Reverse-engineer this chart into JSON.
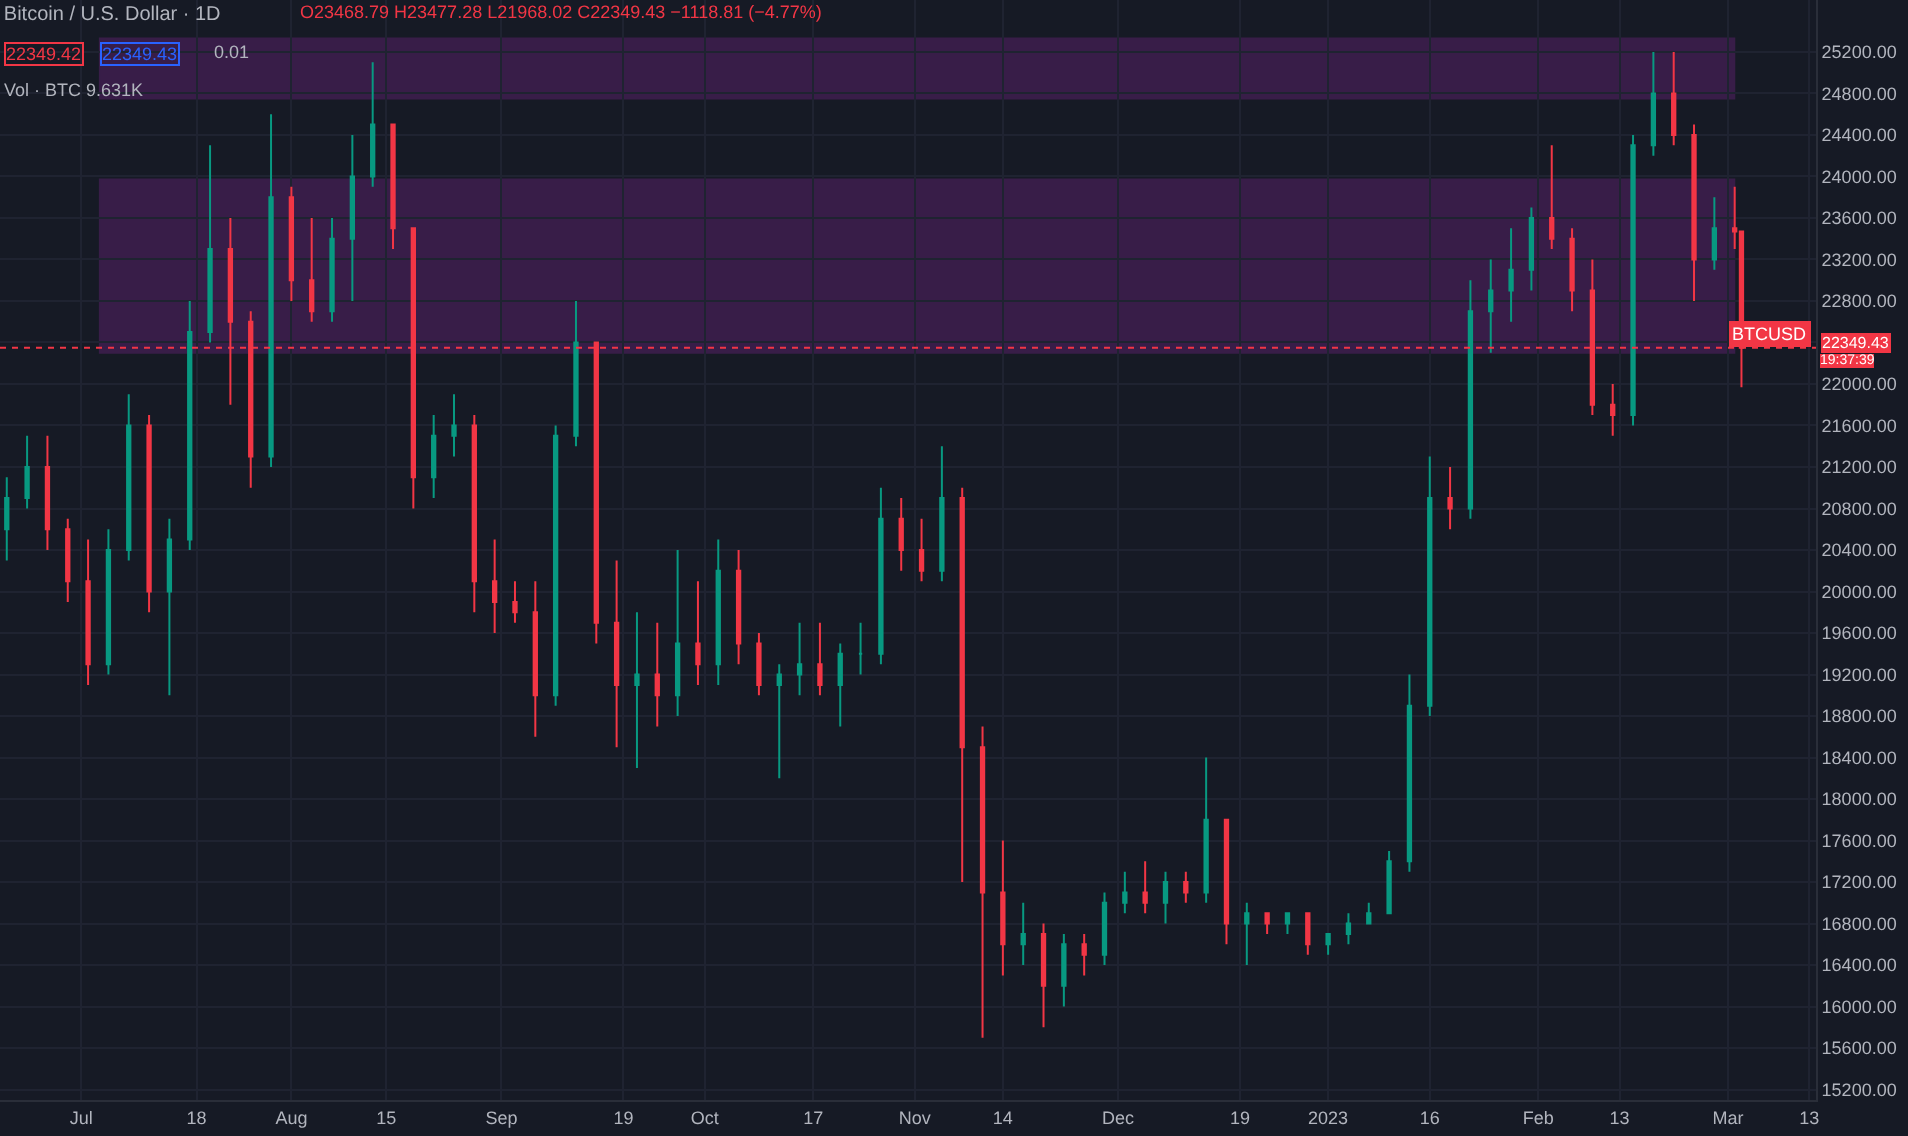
{
  "chart_data": {
    "type": "candlestick",
    "title": "Bitcoin / U.S. Dollar · 1D",
    "annotations": [
      "O23468.79 H23477.28 L21968.02 C22349.43 −1118.81 (−4.77%)",
      "22349.42",
      "0.01",
      "22349.43",
      "Vol · BTC 9.631K",
      "19:37:39"
    ],
    "x": [
      "2022-06-20",
      "2022-06-23",
      "2022-06-26",
      "2022-06-29",
      "2022-07-02",
      "2022-07-05",
      "2022-07-08",
      "2022-07-11",
      "2022-07-14",
      "2022-07-17",
      "2022-07-20",
      "2022-07-23",
      "2022-07-26",
      "2022-07-29",
      "2022-08-01",
      "2022-08-04",
      "2022-08-07",
      "2022-08-10",
      "2022-08-13",
      "2022-08-16",
      "2022-08-19",
      "2022-08-22",
      "2022-08-25",
      "2022-08-28",
      "2022-08-31",
      "2022-09-03",
      "2022-09-06",
      "2022-09-09",
      "2022-09-12",
      "2022-09-15",
      "2022-09-18",
      "2022-09-21",
      "2022-09-24",
      "2022-09-27",
      "2022-09-30",
      "2022-10-03",
      "2022-10-06",
      "2022-10-09",
      "2022-10-12",
      "2022-10-15",
      "2022-10-18",
      "2022-10-21",
      "2022-10-24",
      "2022-10-27",
      "2022-10-30",
      "2022-11-02",
      "2022-11-05",
      "2022-11-08",
      "2022-11-11",
      "2022-11-14",
      "2022-11-17",
      "2022-11-20",
      "2022-11-23",
      "2022-11-26",
      "2022-11-29",
      "2022-12-02",
      "2022-12-05",
      "2022-12-08",
      "2022-12-11",
      "2022-12-14",
      "2022-12-17",
      "2022-12-20",
      "2022-12-23",
      "2022-12-26",
      "2022-12-29",
      "2023-01-01",
      "2023-01-04",
      "2023-01-07",
      "2023-01-10",
      "2023-01-13",
      "2023-01-16",
      "2023-01-19",
      "2023-01-22",
      "2023-01-25",
      "2023-01-28",
      "2023-01-31",
      "2023-02-03",
      "2023-02-06",
      "2023-02-09",
      "2023-02-12",
      "2023-02-15",
      "2023-02-18",
      "2023-02-21",
      "2023-02-24",
      "2023-02-27",
      "2023-03-02",
      "2023-03-03"
    ],
    "ohlc": [
      [
        20600,
        21100,
        20300,
        20900
      ],
      [
        20900,
        21500,
        20800,
        21200
      ],
      [
        21200,
        21500,
        20400,
        20600
      ],
      [
        20600,
        20700,
        19900,
        20100
      ],
      [
        20100,
        20500,
        19100,
        19300
      ],
      [
        19300,
        20600,
        19200,
        20400
      ],
      [
        20400,
        21900,
        20300,
        21600
      ],
      [
        21600,
        21700,
        19800,
        20000
      ],
      [
        20000,
        20700,
        19000,
        20500
      ],
      [
        20500,
        22800,
        20400,
        22500
      ],
      [
        22500,
        24300,
        22400,
        23300
      ],
      [
        23300,
        23600,
        21800,
        22600
      ],
      [
        22600,
        22700,
        21000,
        21300
      ],
      [
        21300,
        24600,
        21200,
        23800
      ],
      [
        23800,
        23900,
        22800,
        23000
      ],
      [
        23000,
        23600,
        22600,
        22700
      ],
      [
        22700,
        23600,
        22600,
        23400
      ],
      [
        23400,
        24400,
        22800,
        24000
      ],
      [
        24000,
        25100,
        23900,
        24500
      ],
      [
        24500,
        24500,
        23300,
        23500
      ],
      [
        23500,
        23500,
        20800,
        21100
      ],
      [
        21100,
        21700,
        20900,
        21500
      ],
      [
        21500,
        21900,
        21300,
        21600
      ],
      [
        21600,
        21700,
        19800,
        20100
      ],
      [
        20100,
        20500,
        19600,
        19900
      ],
      [
        19900,
        20100,
        19700,
        19800
      ],
      [
        19800,
        20100,
        18600,
        19000
      ],
      [
        19000,
        21600,
        18900,
        21500
      ],
      [
        21500,
        22800,
        21400,
        22400
      ],
      [
        22400,
        22400,
        19500,
        19700
      ],
      [
        19700,
        20300,
        18500,
        19100
      ],
      [
        19100,
        19800,
        18300,
        19200
      ],
      [
        19200,
        19700,
        18700,
        19000
      ],
      [
        19000,
        20400,
        18800,
        19500
      ],
      [
        19500,
        20100,
        19100,
        19300
      ],
      [
        19300,
        20500,
        19100,
        20200
      ],
      [
        20200,
        20400,
        19300,
        19500
      ],
      [
        19500,
        19600,
        19000,
        19100
      ],
      [
        19100,
        19300,
        18200,
        19200
      ],
      [
        19200,
        19700,
        19000,
        19300
      ],
      [
        19300,
        19700,
        19000,
        19100
      ],
      [
        19100,
        19500,
        18700,
        19400
      ],
      [
        19400,
        19700,
        19200,
        19400
      ],
      [
        19400,
        21000,
        19300,
        20700
      ],
      [
        20700,
        20900,
        20200,
        20400
      ],
      [
        20400,
        20700,
        20100,
        20200
      ],
      [
        20200,
        21400,
        20100,
        20900
      ],
      [
        20900,
        21000,
        17200,
        18500
      ],
      [
        18500,
        18700,
        15700,
        17100
      ],
      [
        17100,
        17600,
        16300,
        16600
      ],
      [
        16600,
        17000,
        16400,
        16700
      ],
      [
        16700,
        16800,
        15800,
        16200
      ],
      [
        16200,
        16700,
        16000,
        16600
      ],
      [
        16600,
        16700,
        16300,
        16500
      ],
      [
        16500,
        17100,
        16400,
        17000
      ],
      [
        17000,
        17300,
        16900,
        17100
      ],
      [
        17100,
        17400,
        16900,
        17000
      ],
      [
        17000,
        17300,
        16800,
        17200
      ],
      [
        17200,
        17300,
        17000,
        17100
      ],
      [
        17100,
        18400,
        17000,
        17800
      ],
      [
        17800,
        17800,
        16600,
        16800
      ],
      [
        16800,
        17000,
        16400,
        16900
      ],
      [
        16900,
        16900,
        16700,
        16800
      ],
      [
        16800,
        16900,
        16700,
        16900
      ],
      [
        16900,
        16900,
        16500,
        16600
      ],
      [
        16600,
        16700,
        16500,
        16700
      ],
      [
        16700,
        16900,
        16600,
        16800
      ],
      [
        16800,
        17000,
        16800,
        16900
      ],
      [
        16900,
        17500,
        16900,
        17400
      ],
      [
        17400,
        19200,
        17300,
        18900
      ],
      [
        18900,
        21300,
        18800,
        20900
      ],
      [
        20900,
        21200,
        20600,
        20800
      ],
      [
        20800,
        23000,
        20700,
        22700
      ],
      [
        22700,
        23200,
        22300,
        22900
      ],
      [
        22900,
        23500,
        22600,
        23100
      ],
      [
        23100,
        23700,
        22900,
        23600
      ],
      [
        23600,
        24300,
        23300,
        23400
      ],
      [
        23400,
        23500,
        22700,
        22900
      ],
      [
        22900,
        23200,
        21700,
        21800
      ],
      [
        21800,
        22000,
        21500,
        21700
      ],
      [
        21700,
        24400,
        21600,
        24300
      ],
      [
        24300,
        25200,
        24200,
        24800
      ],
      [
        24800,
        25200,
        24300,
        24400
      ],
      [
        24400,
        24500,
        22800,
        23200
      ],
      [
        23200,
        23800,
        23100,
        23500
      ],
      [
        23500,
        23900,
        23300,
        23470
      ],
      [
        23468.79,
        23477.28,
        21968.02,
        22349.43
      ]
    ],
    "colors": [
      "#089981",
      "#089981",
      "#f23645",
      "#f23645",
      "#f23645",
      "#089981",
      "#089981",
      "#f23645",
      "#089981",
      "#089981",
      "#089981",
      "#f23645",
      "#f23645",
      "#089981",
      "#f23645",
      "#f23645",
      "#089981",
      "#089981",
      "#089981",
      "#f23645",
      "#f23645",
      "#089981",
      "#089981",
      "#f23645",
      "#f23645",
      "#f23645",
      "#f23645",
      "#089981",
      "#089981",
      "#f23645",
      "#f23645",
      "#089981",
      "#f23645",
      "#089981",
      "#f23645",
      "#089981",
      "#f23645",
      "#f23645",
      "#089981",
      "#089981",
      "#f23645",
      "#089981",
      "#089981",
      "#089981",
      "#f23645",
      "#f23645",
      "#089981",
      "#f23645",
      "#f23645",
      "#f23645",
      "#089981",
      "#f23645",
      "#089981",
      "#f23645",
      "#089981",
      "#089981",
      "#f23645",
      "#089981",
      "#f23645",
      "#089981",
      "#f23645",
      "#089981",
      "#f23645",
      "#089981",
      "#f23645",
      "#089981",
      "#089981",
      "#089981",
      "#089981",
      "#089981",
      "#089981",
      "#f23645",
      "#089981",
      "#089981",
      "#089981",
      "#089981",
      "#f23645",
      "#f23645",
      "#f23645",
      "#f23645",
      "#089981",
      "#089981",
      "#f23645",
      "#f23645",
      "#089981",
      "#f23645",
      "#f23645"
    ],
    "xlim": [
      "2022-06-19",
      "2023-03-14"
    ],
    "xticks": [
      {
        "value": "2022-07-01",
        "label": "Jul"
      },
      {
        "value": "2022-07-18",
        "label": "18"
      },
      {
        "value": "2022-08-01",
        "label": "Aug"
      },
      {
        "value": "2022-08-15",
        "label": "15"
      },
      {
        "value": "2022-09-01",
        "label": "Sep"
      },
      {
        "value": "2022-09-19",
        "label": "19"
      },
      {
        "value": "2022-10-01",
        "label": "Oct"
      },
      {
        "value": "2022-10-17",
        "label": "17"
      },
      {
        "value": "2022-11-01",
        "label": "Nov"
      },
      {
        "value": "2022-11-14",
        "label": "14"
      },
      {
        "value": "2022-12-01",
        "label": "Dec"
      },
      {
        "value": "2022-12-19",
        "label": "19"
      },
      {
        "value": "2023-01-01",
        "label": "2023"
      },
      {
        "value": "2023-01-16",
        "label": "16"
      },
      {
        "value": "2023-02-01",
        "label": "Feb"
      },
      {
        "value": "2023-02-13",
        "label": "13"
      },
      {
        "value": "2023-03-01",
        "label": "Mar"
      },
      {
        "value": "2023-03-13",
        "label": "13"
      }
    ],
    "ylim": [
      15100,
      25700
    ],
    "yticks": [
      {
        "value": 15200,
        "label": "15200.00"
      },
      {
        "value": 15600,
        "label": "15600.00"
      },
      {
        "value": 16000,
        "label": "16000.00"
      },
      {
        "value": 16400,
        "label": "16400.00"
      },
      {
        "value": 16800,
        "label": "16800.00"
      },
      {
        "value": 17200,
        "label": "17200.00"
      },
      {
        "value": 17600,
        "label": "17600.00"
      },
      {
        "value": 18000,
        "label": "18000.00"
      },
      {
        "value": 18400,
        "label": "18400.00"
      },
      {
        "value": 18800,
        "label": "18800.00"
      },
      {
        "value": 19200,
        "label": "19200.00"
      },
      {
        "value": 19600,
        "label": "19600.00"
      },
      {
        "value": 20000,
        "label": "20000.00"
      },
      {
        "value": 20400,
        "label": "20400.00"
      },
      {
        "value": 20800,
        "label": "20800.00"
      },
      {
        "value": 21200,
        "label": "21200.00"
      },
      {
        "value": 21600,
        "label": "21600.00"
      },
      {
        "value": 22000,
        "label": "22000.00"
      },
      {
        "value": 22400,
        "label": null
      },
      {
        "value": 22800,
        "label": "22800.00"
      },
      {
        "value": 23200,
        "label": "23200.00"
      },
      {
        "value": 23600,
        "label": "23600.00"
      },
      {
        "value": 24000,
        "label": "24000.00"
      },
      {
        "value": 24400,
        "label": "24400.00"
      },
      {
        "value": 24800,
        "label": "24800.00"
      },
      {
        "value": 25200,
        "label": "25200.00"
      }
    ],
    "grid": true,
    "ref_lines": [
      {
        "axis": "y",
        "value": 22349.43,
        "label": "BTCUSD",
        "color": "#f23645",
        "line_style": "dotted"
      }
    ],
    "bands": [
      {
        "axis": "y",
        "from": 24750,
        "to": 25330,
        "color": "#9c27b0"
      },
      {
        "axis": "y",
        "from": 22300,
        "to": 23970,
        "color": "#9c27b0"
      }
    ]
  }
}
